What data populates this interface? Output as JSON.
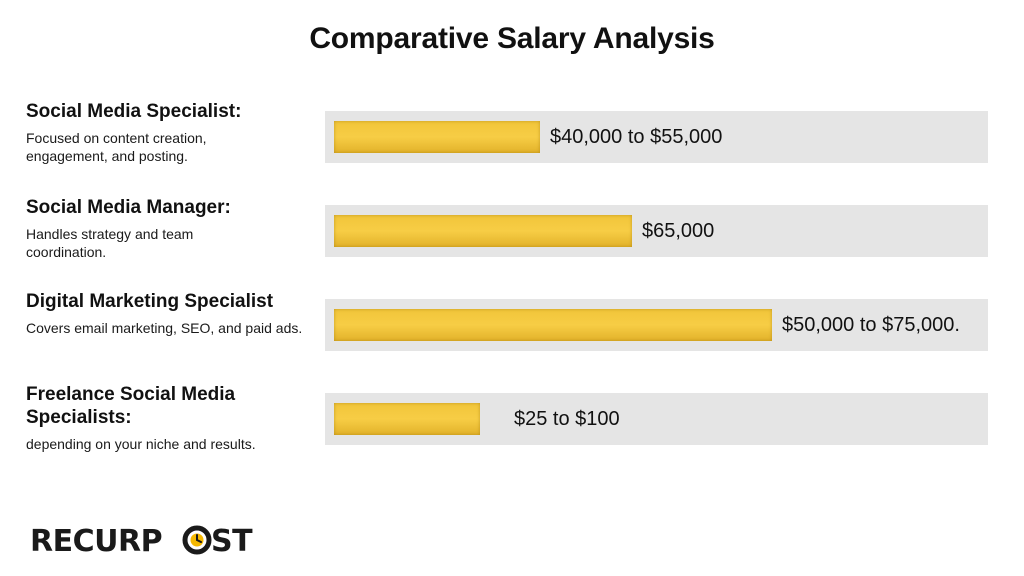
{
  "title": "Comparative Salary Analysis",
  "rows": [
    {
      "heading": "Social Media Specialist:",
      "description": "Focused on content creation, engagement, and posting.",
      "value_label": "$40,000 to $55,000"
    },
    {
      "heading": "Social Media Manager:",
      "description": "Handles strategy and team coordination.",
      "value_label": "$65,000"
    },
    {
      "heading": "Digital Marketing Specialist",
      "description": "Covers email marketing, SEO, and paid ads.",
      "value_label": "$50,000 to $75,000."
    },
    {
      "heading": "Freelance Social Media Specialists:",
      "description": "depending on your niche and results.",
      "value_label": "$25 to $100"
    }
  ],
  "logo": {
    "text": "RECURPOST",
    "icon": "clock-icon"
  },
  "colors": {
    "bar": "#f5c842",
    "track": "#e5e5e5",
    "text": "#111111",
    "logo_accent": "#f5b800"
  },
  "chart_data": {
    "type": "bar",
    "orientation": "horizontal",
    "title": "Comparative Salary Analysis",
    "categories": [
      "Social Media Specialist:",
      "Social Media Manager:",
      "Digital Marketing Specialist",
      "Freelance Social Media Specialists:"
    ],
    "values": [
      0.31,
      0.45,
      0.66,
      0.22
    ],
    "value_labels": [
      "$40,000 to $55,000",
      "$65,000",
      "$50,000 to $75,000.",
      "$25 to $100"
    ],
    "xlabel": "",
    "ylabel": "",
    "grid": false
  }
}
